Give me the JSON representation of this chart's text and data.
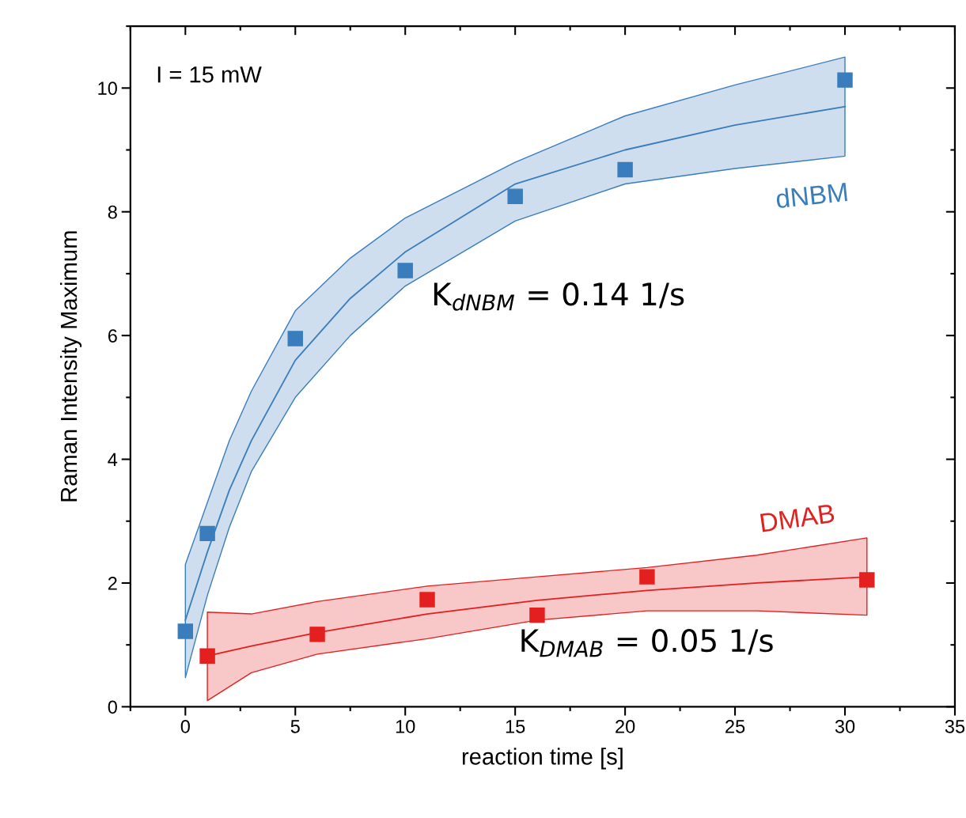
{
  "chart_data": {
    "type": "scatter",
    "xlabel": "reaction time [s]",
    "ylabel": "Raman Intensity Maximum",
    "xlim": [
      -2.5,
      35
    ],
    "xticks": [
      0,
      5,
      10,
      15,
      20,
      25,
      30,
      35
    ],
    "ylim": [
      0,
      11
    ],
    "yticks": [
      0,
      2,
      4,
      6,
      8,
      10
    ],
    "grid": false,
    "legend": false,
    "annotations": [
      "I = 15 mW",
      "K$_{dNBM}$ = 0.14 1/s",
      "K$_{DMAB}$ = 0.05 1/s"
    ],
    "series": [
      {
        "type": "line",
        "color": "#3a7dbd",
        "x": [
          0,
          1,
          2,
          3,
          5,
          7.5,
          10,
          15,
          20,
          25,
          30
        ],
        "values": [
          1.4,
          2.5,
          3.5,
          4.3,
          5.6,
          6.6,
          7.35,
          8.45,
          9.0,
          9.4,
          9.7
        ],
        "lower": [
          0.47,
          1.8,
          2.9,
          3.8,
          5.0,
          6.0,
          6.8,
          7.85,
          8.45,
          8.7,
          8.9
        ],
        "upper": [
          2.3,
          3.3,
          4.3,
          5.1,
          6.4,
          7.25,
          7.9,
          8.8,
          9.55,
          10.05,
          10.5
        ]
      },
      {
        "type": "line",
        "color": "#e3201f",
        "x": [
          1,
          3,
          6,
          11,
          16,
          21,
          26,
          31
        ],
        "values": [
          0.82,
          0.98,
          1.2,
          1.5,
          1.72,
          1.88,
          2.0,
          2.1
        ],
        "lower": [
          0.1,
          0.55,
          0.85,
          1.1,
          1.4,
          1.55,
          1.55,
          1.48
        ],
        "upper": [
          1.53,
          1.5,
          1.7,
          1.95,
          2.1,
          2.25,
          2.45,
          2.73
        ]
      },
      {
        "marker": "square",
        "name": "dNBM",
        "color": "#3a7dbd",
        "x": [
          0,
          1,
          5,
          10,
          15,
          20,
          30
        ],
        "values": [
          1.22,
          2.8,
          5.95,
          7.05,
          8.25,
          8.68,
          10.13
        ]
      },
      {
        "marker": "square",
        "name": "DMAB",
        "color": "#e3201f",
        "x": [
          1,
          6,
          11,
          16,
          21,
          31
        ],
        "values": [
          0.82,
          1.17,
          1.73,
          1.48,
          2.1,
          2.05
        ]
      }
    ]
  }
}
